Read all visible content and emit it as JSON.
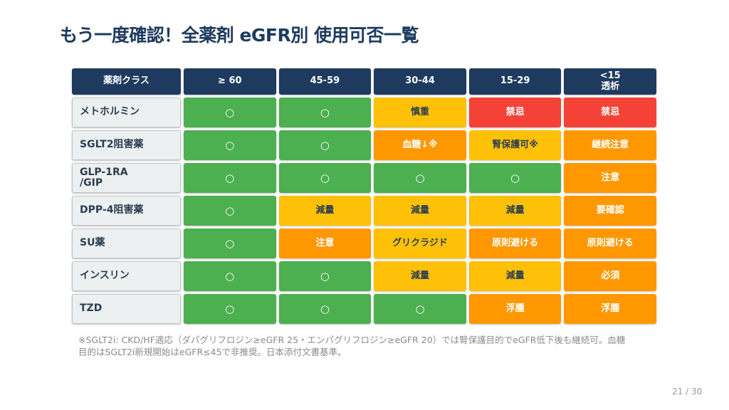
{
  "title": "もう一度確認！全薬剤 eGFR別 使用可否一覧",
  "colors": {
    "header": "#1e3a5f",
    "green": "#4caf50",
    "yellow": "#ffc107",
    "orange": "#ff9800",
    "red": "#f44336"
  },
  "headers": [
    "薬剤クラス",
    "≥ 60",
    "45-59",
    "30-44",
    "15-29",
    "<15\n透析"
  ],
  "rows": [
    {
      "label": "メトホルミン",
      "cells": [
        {
          "t": "○",
          "c": "green"
        },
        {
          "t": "○",
          "c": "green"
        },
        {
          "t": "慎重",
          "c": "yellow"
        },
        {
          "t": "禁忌",
          "c": "red"
        },
        {
          "t": "禁忌",
          "c": "red"
        }
      ]
    },
    {
      "label": "SGLT2阻害薬",
      "cells": [
        {
          "t": "○",
          "c": "green"
        },
        {
          "t": "○",
          "c": "green"
        },
        {
          "t": "血糖↓※",
          "c": "orange"
        },
        {
          "t": "腎保護可※",
          "c": "yellow"
        },
        {
          "t": "継続注意",
          "c": "orange"
        }
      ]
    },
    {
      "label": "GLP-1RA\n/GIP",
      "cells": [
        {
          "t": "○",
          "c": "green"
        },
        {
          "t": "○",
          "c": "green"
        },
        {
          "t": "○",
          "c": "green"
        },
        {
          "t": "○",
          "c": "green"
        },
        {
          "t": "注意",
          "c": "orange"
        }
      ]
    },
    {
      "label": "DPP-4阻害薬",
      "cells": [
        {
          "t": "○",
          "c": "green"
        },
        {
          "t": "減量",
          "c": "yellow"
        },
        {
          "t": "減量",
          "c": "yellow"
        },
        {
          "t": "減量",
          "c": "yellow"
        },
        {
          "t": "要確認",
          "c": "orange"
        }
      ]
    },
    {
      "label": "SU薬",
      "cells": [
        {
          "t": "○",
          "c": "green"
        },
        {
          "t": "注意",
          "c": "orange"
        },
        {
          "t": "グリクラジド",
          "c": "yellow"
        },
        {
          "t": "原則避ける",
          "c": "orange"
        },
        {
          "t": "原則避ける",
          "c": "orange"
        }
      ]
    },
    {
      "label": "インスリン",
      "cells": [
        {
          "t": "○",
          "c": "green"
        },
        {
          "t": "○",
          "c": "green"
        },
        {
          "t": "減量",
          "c": "yellow"
        },
        {
          "t": "減量",
          "c": "yellow"
        },
        {
          "t": "必須",
          "c": "orange"
        }
      ]
    },
    {
      "label": "TZD",
      "cells": [
        {
          "t": "○",
          "c": "green"
        },
        {
          "t": "○",
          "c": "green"
        },
        {
          "t": "○",
          "c": "green"
        },
        {
          "t": "浮腫",
          "c": "orange"
        },
        {
          "t": "浮腫",
          "c": "orange"
        }
      ]
    }
  ],
  "footnote": "※SGLT2i: CKD/HF適応（ダパグリフロジン≥eGFR 25・エンパグリフロジン≥eGFR 20）では腎保護目的でeGFR低下後も継続可。血糖目的はSGLT2i新規開始はeGFR≤45で非推奨。日本添付文書基準。",
  "page": "21 / 30"
}
